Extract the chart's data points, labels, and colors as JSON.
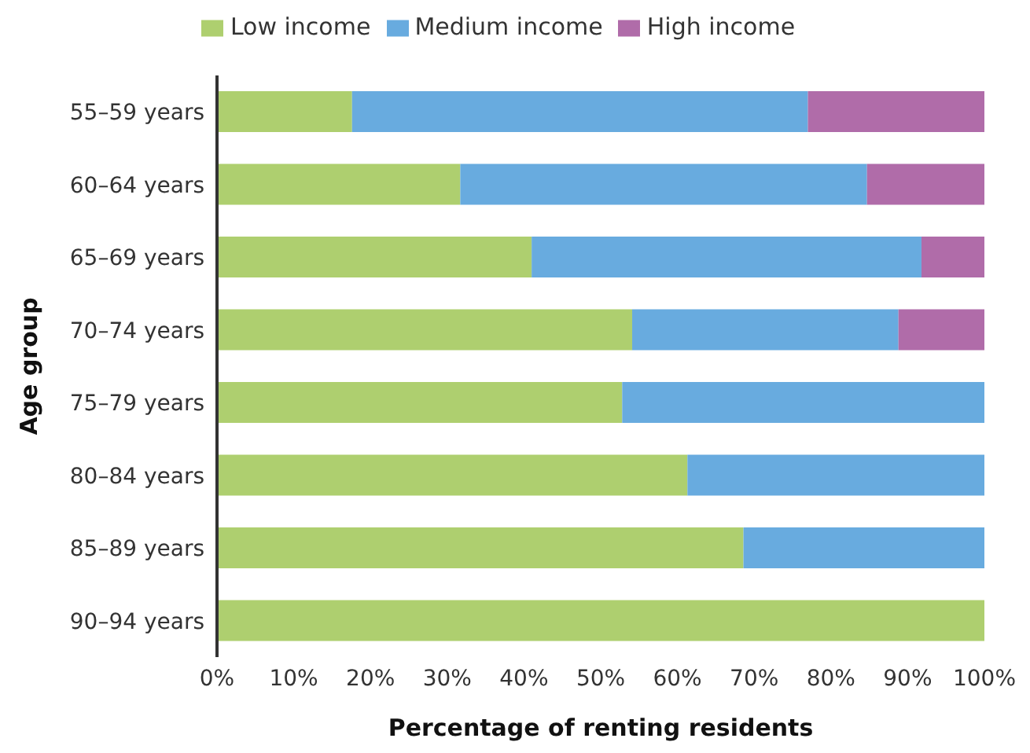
{
  "chart_data": {
    "type": "bar",
    "orientation": "horizontal",
    "stacked": true,
    "xlabel": "Percentage of renting residents",
    "ylabel": "Age group",
    "categories": [
      "55–59 years",
      "60–64 years",
      "65–69 years",
      "70–74 years",
      "75–79 years",
      "80–84 years",
      "85–89 years",
      "90–94 years"
    ],
    "series": [
      {
        "name": "Low income",
        "color": "#aecf6f",
        "values": [
          17.6,
          31.7,
          41.0,
          54.1,
          52.8,
          61.3,
          68.6,
          100
        ]
      },
      {
        "name": "Medium income",
        "color": "#68abdf",
        "values": [
          59.4,
          53.0,
          50.8,
          34.7,
          47.2,
          38.7,
          31.4,
          null
        ]
      },
      {
        "name": "High income",
        "color": "#b06ca9",
        "values": [
          23.0,
          15.3,
          8.2,
          11.2,
          null,
          null,
          null,
          null
        ]
      }
    ],
    "xlim": [
      0,
      100
    ],
    "xticks": [
      {
        "value": 0,
        "label": "0%"
      },
      {
        "value": 10,
        "label": "10%"
      },
      {
        "value": 20,
        "label": "20%"
      },
      {
        "value": 30,
        "label": "30%"
      },
      {
        "value": 40,
        "label": "40%"
      },
      {
        "value": 50,
        "label": "50%"
      },
      {
        "value": 60,
        "label": "60%"
      },
      {
        "value": 70,
        "label": "70%"
      },
      {
        "value": 80,
        "label": "80%"
      },
      {
        "value": 90,
        "label": "90%"
      },
      {
        "value": 100,
        "label": "100%"
      }
    ],
    "grid": false,
    "legend": "top"
  }
}
